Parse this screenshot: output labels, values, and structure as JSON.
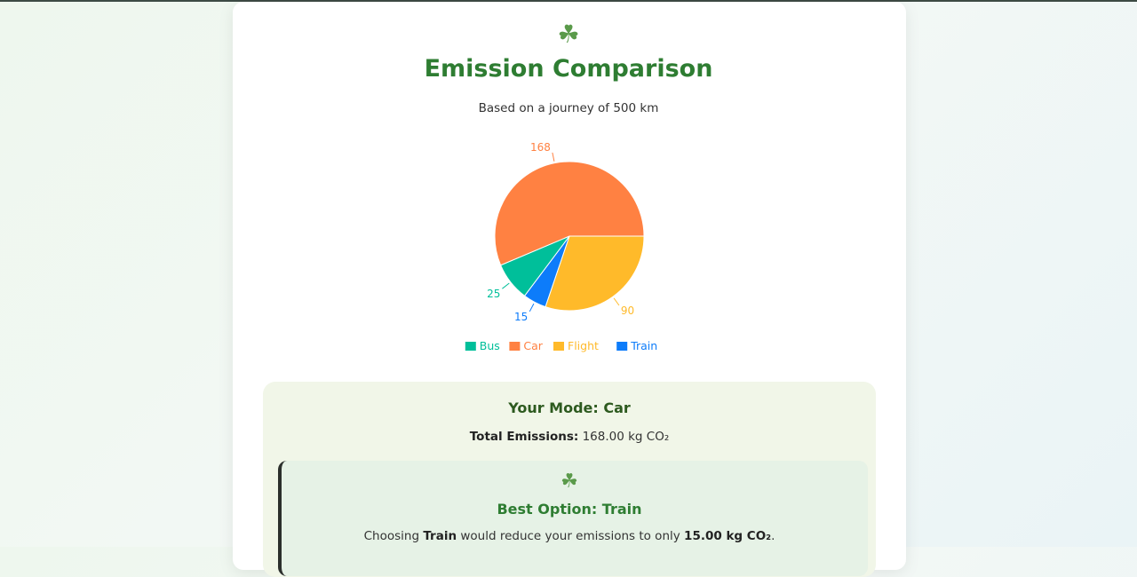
{
  "header": {
    "icon": "shamrock-icon",
    "title": "Emission Comparison",
    "subtitle": "Based on a journey of 500 km"
  },
  "colors": {
    "accent": "#2e7d32",
    "bus": "#00bf9a",
    "car": "#ff8142",
    "flight": "#ffba2a",
    "train": "#0d7cfa"
  },
  "chart_data": {
    "type": "pie",
    "title": "Emission Comparison",
    "categories": [
      "Bus",
      "Car",
      "Flight",
      "Train"
    ],
    "values": [
      25,
      168,
      90,
      15
    ],
    "colors": [
      "#00bf9a",
      "#ff8142",
      "#ffba2a",
      "#0d7cfa"
    ],
    "legend": "bottom"
  },
  "summary": {
    "mode_title": "Your Mode: Car",
    "total_label": "Total Emissions:",
    "total_value": "168.00 kg CO₂"
  },
  "best": {
    "icon": "shamrock-icon",
    "title": "Best Option: Train",
    "text_prefix": "Choosing",
    "mode": "Train",
    "text_middle": "would reduce your emissions to only",
    "value": "15.00 kg CO₂",
    "text_suffix": "."
  }
}
